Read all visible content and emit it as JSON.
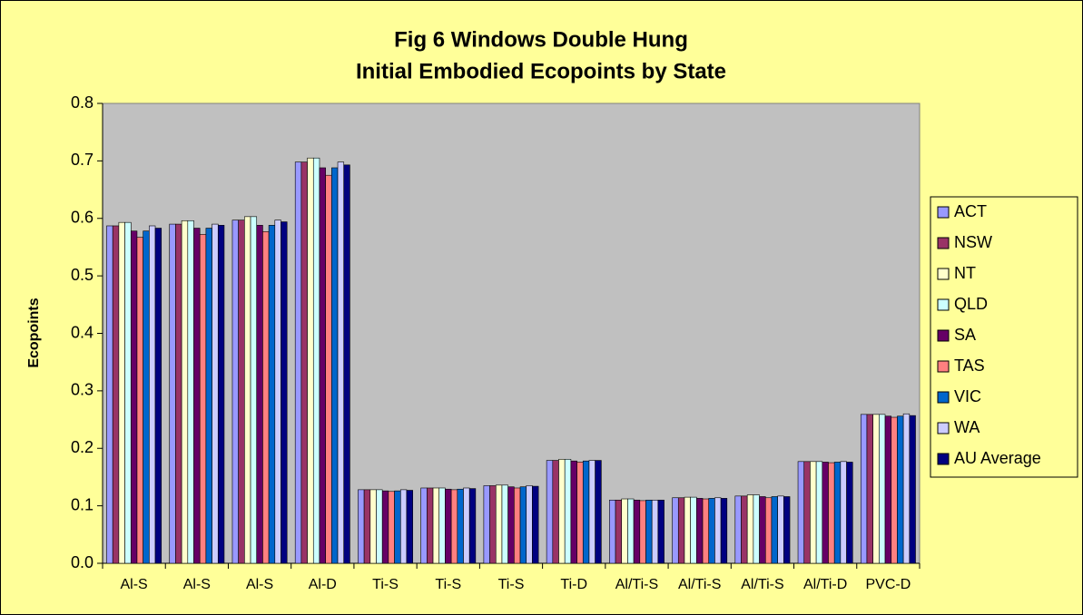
{
  "chart_data": {
    "type": "bar",
    "title": "Fig 6 Windows Double Hung",
    "subtitle": "Initial Embodied Ecopoints by State",
    "y_label": "Ecopoints",
    "categories": [
      "Al-S",
      "Al-S",
      "Al-S",
      "Al-D",
      "Ti-S",
      "Ti-S",
      "Ti-S",
      "Ti-D",
      "Al/Ti-S",
      "Al/Ti-S",
      "Al/Ti-S",
      "Al/Ti-D",
      "PVC-D"
    ],
    "series": [
      {
        "name": "ACT",
        "color": "#9999ff",
        "values": [
          0.587,
          0.59,
          0.597,
          0.698,
          0.128,
          0.131,
          0.135,
          0.179,
          0.11,
          0.114,
          0.117,
          0.177,
          0.259
        ]
      },
      {
        "name": "NSW",
        "color": "#993366",
        "values": [
          0.587,
          0.59,
          0.597,
          0.698,
          0.128,
          0.131,
          0.135,
          0.179,
          0.11,
          0.114,
          0.117,
          0.177,
          0.259
        ]
      },
      {
        "name": "NT",
        "color": "#ffffcc",
        "values": [
          0.593,
          0.596,
          0.603,
          0.705,
          0.128,
          0.131,
          0.136,
          0.181,
          0.112,
          0.115,
          0.119,
          0.177,
          0.259
        ]
      },
      {
        "name": "QLD",
        "color": "#ccffff",
        "values": [
          0.593,
          0.596,
          0.603,
          0.705,
          0.128,
          0.131,
          0.136,
          0.181,
          0.112,
          0.115,
          0.119,
          0.177,
          0.259
        ]
      },
      {
        "name": "SA",
        "color": "#660066",
        "values": [
          0.578,
          0.583,
          0.588,
          0.688,
          0.126,
          0.129,
          0.133,
          0.178,
          0.11,
          0.113,
          0.116,
          0.176,
          0.256
        ]
      },
      {
        "name": "TAS",
        "color": "#ff8080",
        "values": [
          0.567,
          0.572,
          0.577,
          0.675,
          0.125,
          0.128,
          0.131,
          0.176,
          0.109,
          0.112,
          0.114,
          0.175,
          0.254
        ]
      },
      {
        "name": "VIC",
        "color": "#0066cc",
        "values": [
          0.578,
          0.583,
          0.588,
          0.688,
          0.126,
          0.129,
          0.133,
          0.178,
          0.11,
          0.113,
          0.116,
          0.176,
          0.256
        ]
      },
      {
        "name": "WA",
        "color": "#ccccff",
        "values": [
          0.587,
          0.59,
          0.597,
          0.698,
          0.128,
          0.131,
          0.135,
          0.179,
          0.11,
          0.114,
          0.117,
          0.177,
          0.26
        ]
      },
      {
        "name": "AU Average",
        "color": "#000080",
        "values": [
          0.583,
          0.588,
          0.594,
          0.693,
          0.127,
          0.13,
          0.134,
          0.179,
          0.11,
          0.113,
          0.116,
          0.176,
          0.257
        ]
      }
    ],
    "ylim": [
      0,
      0.8
    ],
    "yticks": [
      {
        "value": 0,
        "label": "0.0"
      },
      0.1,
      0.2,
      0.3,
      0.4,
      0.5,
      0.6,
      0.7,
      0.8
    ],
    "legend": "right"
  }
}
